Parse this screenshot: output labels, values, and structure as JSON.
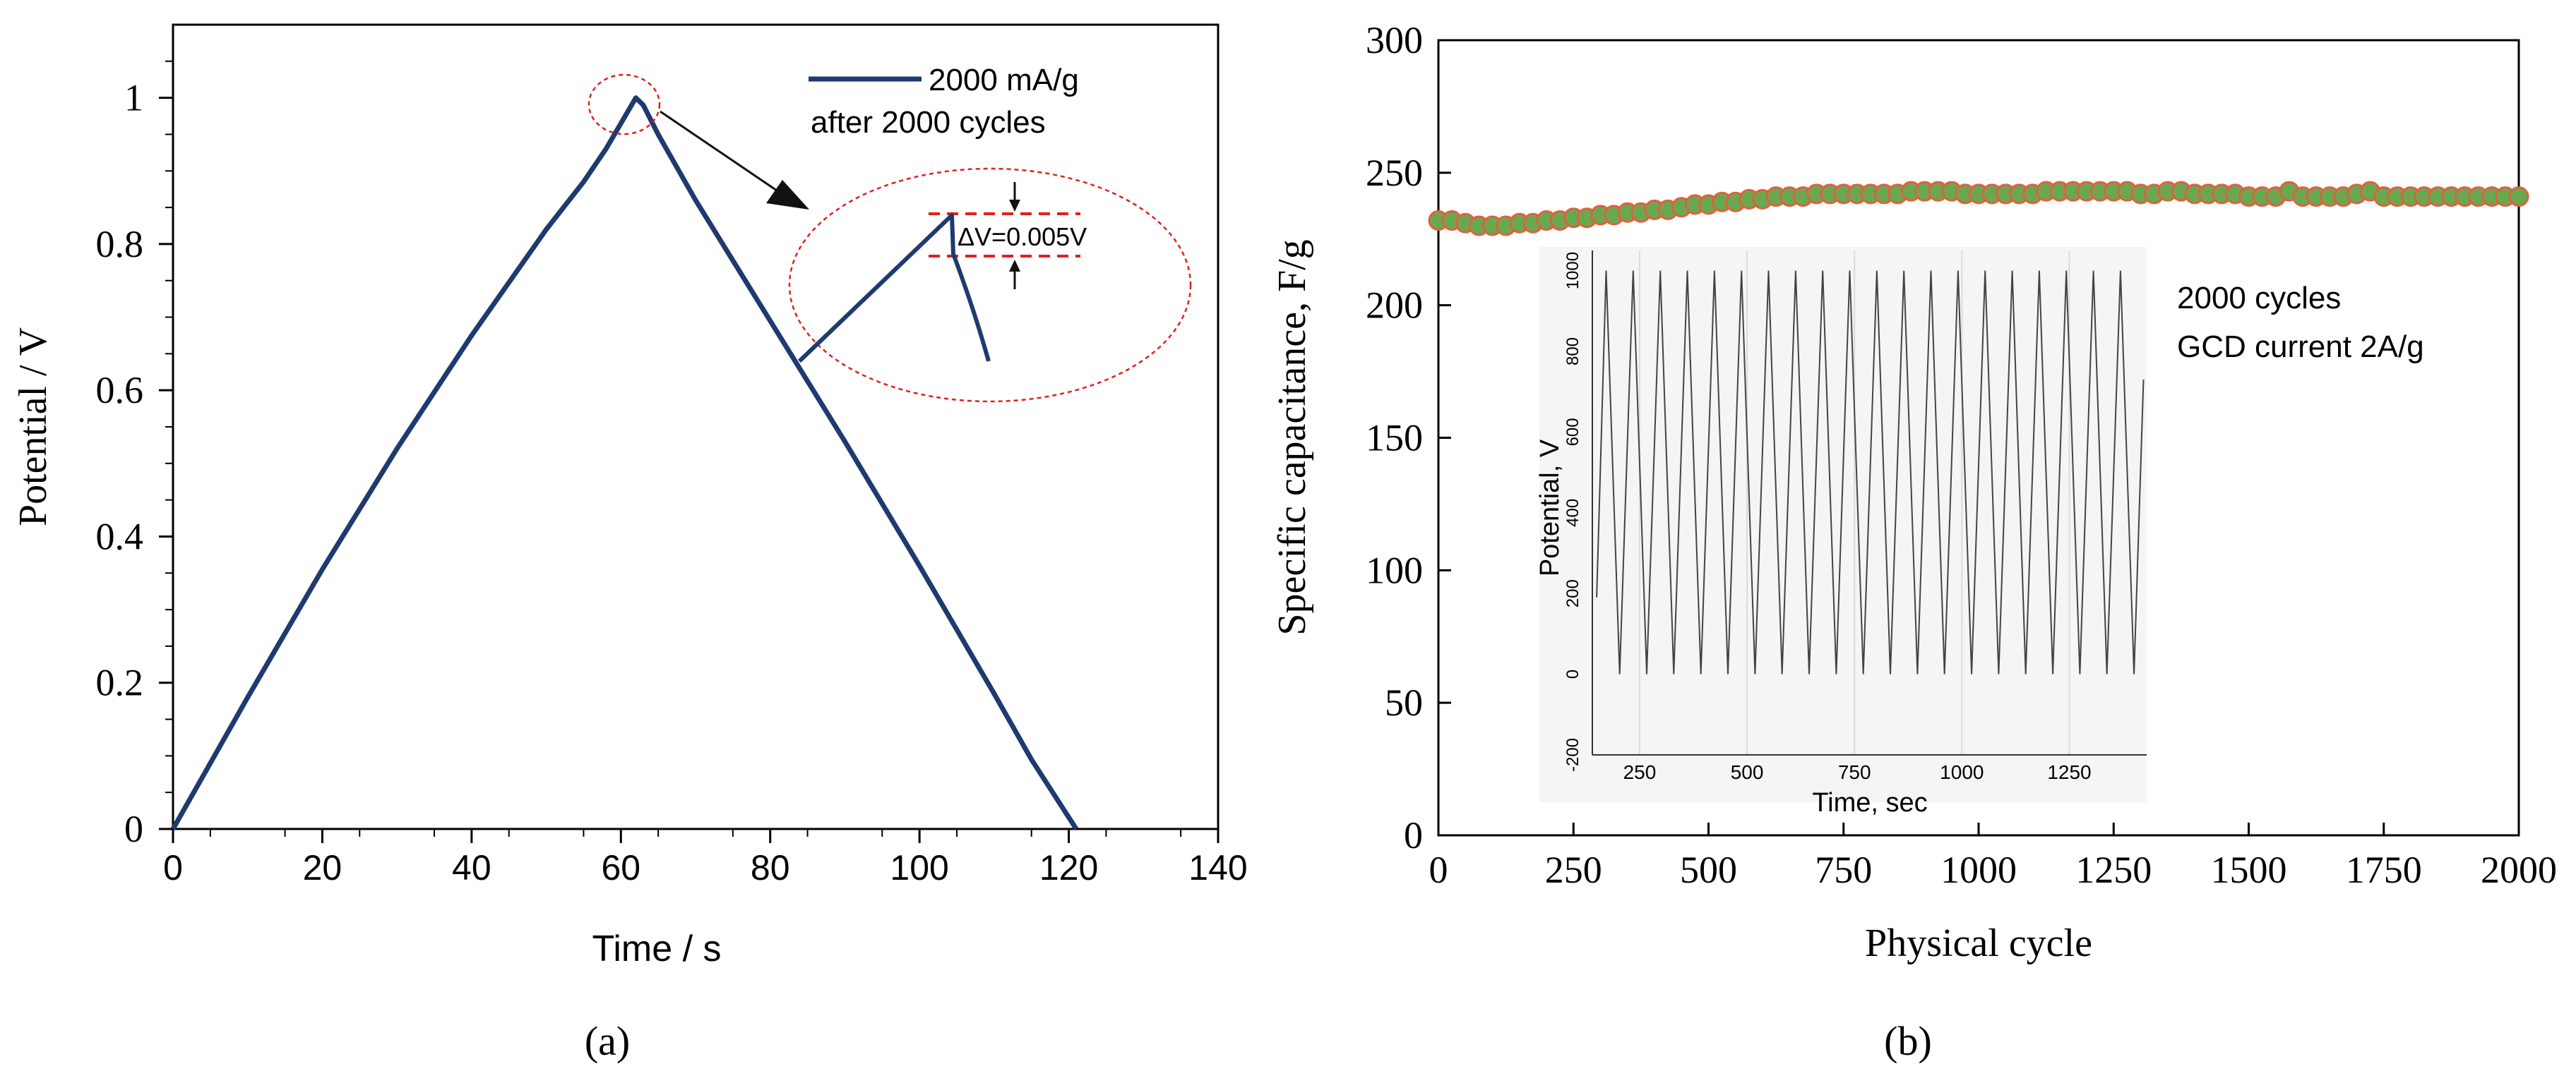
{
  "chart_data": [
    {
      "type": "line",
      "panel_label": "(a)",
      "xlabel": "Time / s",
      "ylabel": "Potential / V",
      "xlim": [
        0,
        140
      ],
      "ylim": [
        0,
        1.1
      ],
      "x_ticks": [
        "0",
        "20",
        "40",
        "60",
        "80",
        "100",
        "120",
        "140"
      ],
      "y_ticks": [
        "0",
        "0.2",
        "0.4",
        "0.6",
        "0.8",
        "1"
      ],
      "grid": false,
      "legend_position": "top-right",
      "legend_lines": [
        "2000 mA/g",
        "after 2000 cycles"
      ],
      "series": [
        {
          "name": "2000 mA/g",
          "color": "#1f3a6e",
          "points": [
            [
              0,
              0
            ],
            [
              10,
              0.18
            ],
            [
              20,
              0.355
            ],
            [
              30,
              0.52
            ],
            [
              40,
              0.675
            ],
            [
              50,
              0.82
            ],
            [
              55,
              0.885
            ],
            [
              58,
              0.93
            ],
            [
              60,
              0.965
            ],
            [
              62,
              1.0
            ],
            [
              63,
              0.99
            ],
            [
              65,
              0.95
            ],
            [
              70,
              0.86
            ],
            [
              80,
              0.695
            ],
            [
              90,
              0.53
            ],
            [
              100,
              0.36
            ],
            [
              110,
              0.185
            ],
            [
              115,
              0.095
            ],
            [
              121,
              0.0
            ]
          ]
        }
      ],
      "annotations": {
        "zoom_text": "ΔV=0.005V"
      }
    },
    {
      "type": "scatter",
      "panel_label": "(b)",
      "xlabel": "Physical cycle",
      "ylabel": "Specific capacitance, F/g",
      "xlim": [
        0,
        2000
      ],
      "ylim": [
        0,
        300
      ],
      "x_ticks": [
        "0",
        "250",
        "500",
        "750",
        "1000",
        "1250",
        "1500",
        "1750",
        "2000"
      ],
      "y_ticks": [
        "0",
        "50",
        "100",
        "150",
        "200",
        "250",
        "300"
      ],
      "grid": false,
      "annotation_lines": [
        "2000 cycles",
        "GCD current 2A/g"
      ],
      "marker_fill": "#6aa84f",
      "marker_edge": "#e06040",
      "series": [
        {
          "x": [
            0,
            25,
            50,
            75,
            100,
            125,
            150,
            175,
            200,
            225,
            250,
            275,
            300,
            325,
            350,
            375,
            400,
            425,
            450,
            475,
            500,
            525,
            550,
            575,
            600,
            625,
            650,
            675,
            700,
            725,
            750,
            775,
            800,
            825,
            850,
            875,
            900,
            925,
            950,
            975,
            1000,
            1025,
            1050,
            1075,
            1100,
            1125,
            1150,
            1175,
            1200,
            1225,
            1250,
            1275,
            1300,
            1325,
            1350,
            1375,
            1400,
            1425,
            1450,
            1475,
            1500,
            1525,
            1550,
            1575,
            1600,
            1625,
            1650,
            1675,
            1700,
            1725,
            1750,
            1775,
            1800,
            1825,
            1850,
            1875,
            1900,
            1925,
            1950,
            1975,
            2000
          ],
          "y": [
            232,
            232,
            231,
            230,
            230,
            230,
            231,
            231,
            232,
            232,
            233,
            233,
            234,
            234,
            235,
            235,
            236,
            236,
            237,
            238,
            238,
            239,
            239,
            240,
            240,
            241,
            241,
            241,
            242,
            242,
            242,
            242,
            242,
            242,
            242,
            243,
            243,
            243,
            243,
            242,
            242,
            242,
            242,
            242,
            242,
            243,
            243,
            243,
            243,
            243,
            243,
            243,
            242,
            242,
            243,
            243,
            242,
            242,
            242,
            242,
            241,
            241,
            241,
            243,
            241,
            241,
            241,
            241,
            242,
            243,
            241,
            241,
            241,
            241,
            241,
            241,
            241,
            241,
            241,
            241,
            241
          ]
        }
      ],
      "inset": {
        "type": "line",
        "xlabel": "Time, sec",
        "ylabel": "Potential, V",
        "xlim": [
          140,
          1430
        ],
        "ylim": [
          -200,
          1050
        ],
        "x_ticks": [
          "250",
          "500",
          "750",
          "1000",
          "1250"
        ],
        "y_ticks": [
          "-200",
          "0",
          "200",
          "400",
          "600",
          "800",
          "1000"
        ],
        "color": "#444444",
        "cycles": 20,
        "first_x": 150,
        "period": 63,
        "peak": 1000,
        "trough": 0,
        "start_value": 190,
        "end_value": 730
      }
    }
  ]
}
